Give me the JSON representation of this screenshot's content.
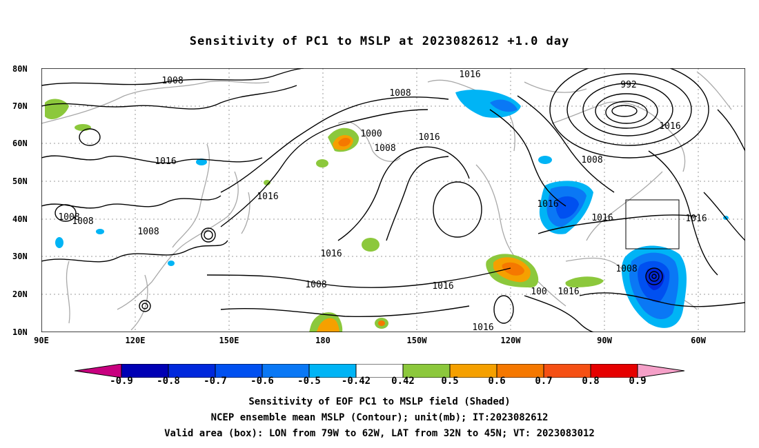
{
  "title": "Sensitivity of PC1 to MSLP at 2023082612 +1.0 day",
  "lon_labels": [
    "90E",
    "120E",
    "150E",
    "180",
    "150W",
    "120W",
    "90W",
    "60W"
  ],
  "lat_labels": [
    "80N",
    "70N",
    "60N",
    "50N",
    "40N",
    "30N",
    "20N",
    "10N"
  ],
  "contour_labels": [
    "1008",
    "1016",
    "1008",
    "1000",
    "1008",
    "1016",
    "992",
    "1016",
    "1008",
    "1016",
    "1016",
    "1008",
    "1008",
    "1016",
    "1016",
    "1016",
    "1016",
    "1008",
    "1016",
    "1008",
    "1016",
    "100",
    "1016",
    "1008"
  ],
  "colorbar": {
    "colors": [
      "#c8007f",
      "#0000b4",
      "#0028dc",
      "#0050f0",
      "#0a78f5",
      "#00b4f5",
      "#ffffff",
      "#8cc83c",
      "#f5a000",
      "#f57800",
      "#f55014",
      "#e60000",
      "#f5a0c8"
    ],
    "labels": [
      "-0.9",
      "-0.8",
      "-0.7",
      "-0.6",
      "-0.5",
      "-0.42",
      "0.42",
      "0.5",
      "0.6",
      "0.7",
      "0.8",
      "0.9"
    ]
  },
  "captions": [
    "Sensitivity of EOF PC1 to MSLP field (Shaded)",
    "NCEP ensemble mean MSLP (Contour); unit(mb); IT:2023082612",
    "Valid area (box): LON from 79W to 62W, LAT from 32N to 45N; VT: 2023083012"
  ]
}
